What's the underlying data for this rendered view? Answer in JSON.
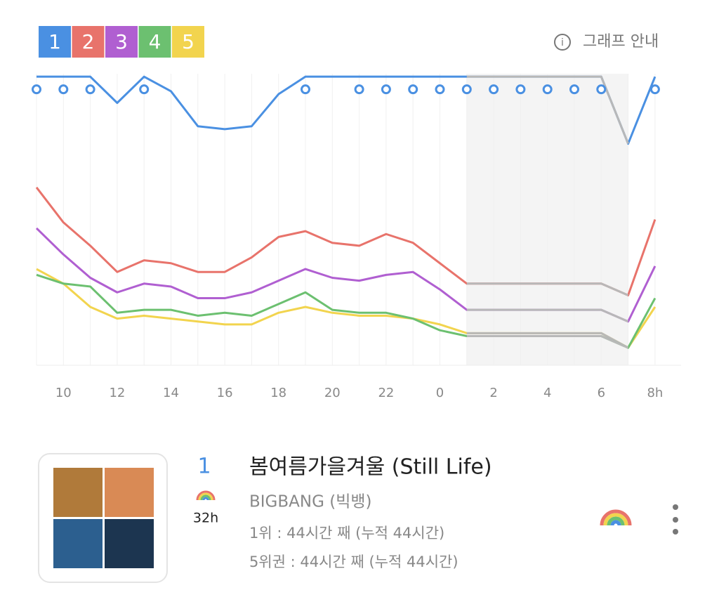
{
  "chart_data": {
    "type": "line",
    "categories": [
      null,
      "10",
      null,
      "12",
      null,
      "14",
      null,
      "16",
      null,
      "18",
      null,
      "20",
      null,
      "22",
      null,
      "0",
      null,
      "2",
      null,
      "4",
      null,
      "6",
      null,
      "8h"
    ],
    "series": [
      {
        "name": "1",
        "color": "#4a90e2",
        "values": [
          99,
          99,
          99,
          90,
          99,
          94,
          82,
          81,
          82,
          93,
          99,
          99,
          99,
          99,
          99,
          99,
          99,
          99,
          99,
          99,
          99,
          99,
          76,
          99
        ]
      },
      {
        "name": "2",
        "color": "#e8736b",
        "values": [
          61,
          49,
          41,
          32,
          36,
          35,
          32,
          32,
          37,
          44,
          46,
          42,
          41,
          45,
          42,
          35,
          28,
          28,
          28,
          28,
          28,
          28,
          24,
          50
        ]
      },
      {
        "name": "3",
        "color": "#b05fd1",
        "values": [
          47,
          38,
          30,
          25,
          28,
          27,
          23,
          23,
          25,
          29,
          33,
          30,
          29,
          31,
          32,
          26,
          19,
          19,
          19,
          19,
          19,
          19,
          15,
          34
        ]
      },
      {
        "name": "4",
        "color": "#6cc070",
        "values": [
          31,
          28,
          27,
          18,
          19,
          19,
          17,
          18,
          17,
          21,
          25,
          19,
          18,
          18,
          16,
          12,
          10,
          10,
          10,
          10,
          10,
          10,
          6,
          23
        ]
      },
      {
        "name": "5",
        "color": "#f2d44e",
        "values": [
          33,
          28,
          20,
          16,
          17,
          16,
          15,
          14,
          14,
          18,
          20,
          18,
          17,
          17,
          16,
          14,
          11,
          11,
          11,
          11,
          11,
          11,
          6,
          20
        ]
      }
    ],
    "ylim": [
      0,
      100
    ],
    "grid": true
  },
  "header": {
    "guide": "그래프 안내"
  },
  "song": {
    "rank": "1",
    "hours": "32h",
    "title": "봄여름가을겨울 (Still Life)",
    "artist": "BIGBANG (빅뱅)",
    "stats": [
      "1위 : 44시간 째 (누적 44시간)",
      "5위권 : 44시간 째 (누적 44시간)"
    ]
  }
}
